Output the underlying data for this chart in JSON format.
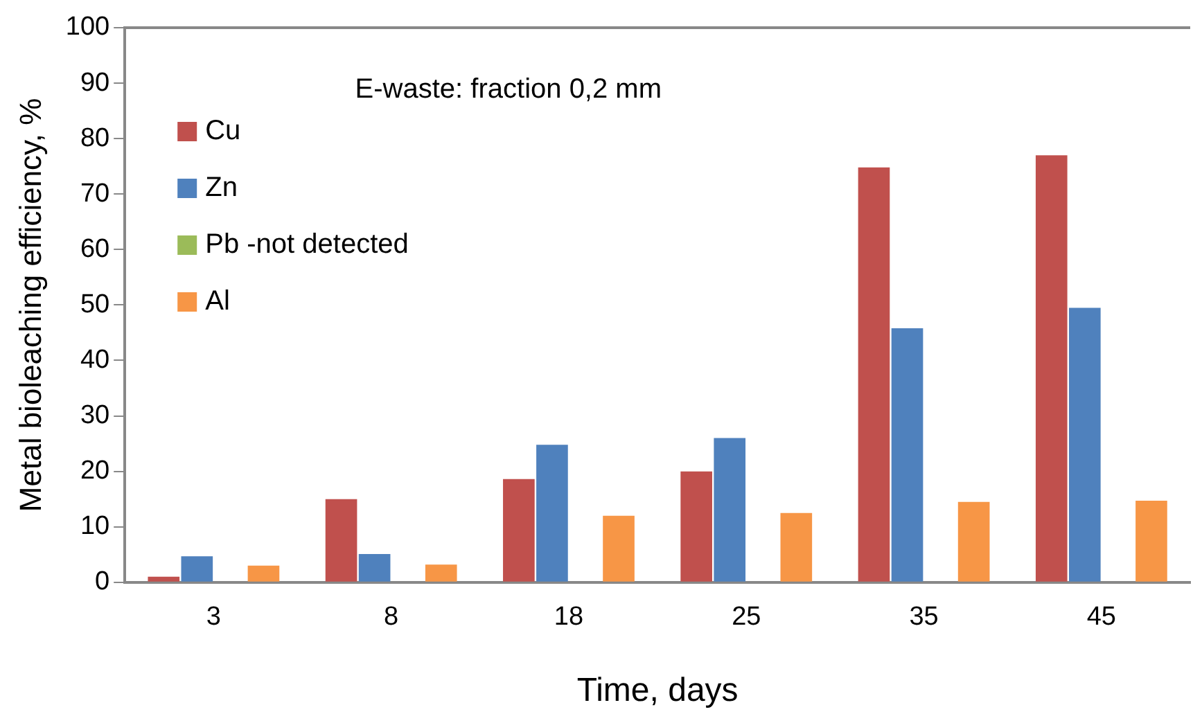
{
  "chart_data": {
    "type": "bar",
    "title": "E-waste: fraction 0,2 mm",
    "xlabel": "Time, days",
    "ylabel": "Metal bioleaching efficiency, %",
    "categories": [
      "3",
      "8",
      "18",
      "25",
      "35",
      "45"
    ],
    "series": [
      {
        "name": "Cu",
        "color": "#c0504d",
        "values": [
          1,
          15,
          18.6,
          20,
          74.8,
          77
        ]
      },
      {
        "name": "Zn",
        "color": "#4f81bd",
        "values": [
          4.7,
          5.1,
          24.8,
          26,
          45.8,
          49.5
        ]
      },
      {
        "name": "Pb -not detected",
        "color": "#9bbb59",
        "values": [
          0,
          0,
          0,
          0,
          0,
          0
        ]
      },
      {
        "name": "Al",
        "color": "#f79646",
        "values": [
          3,
          3.2,
          12,
          12.5,
          14.5,
          14.7
        ]
      }
    ],
    "ylim": [
      0,
      100
    ],
    "yticks": [
      0,
      10,
      20,
      30,
      40,
      50,
      60,
      70,
      80,
      90,
      100
    ],
    "grid": false,
    "legend": "top left"
  }
}
